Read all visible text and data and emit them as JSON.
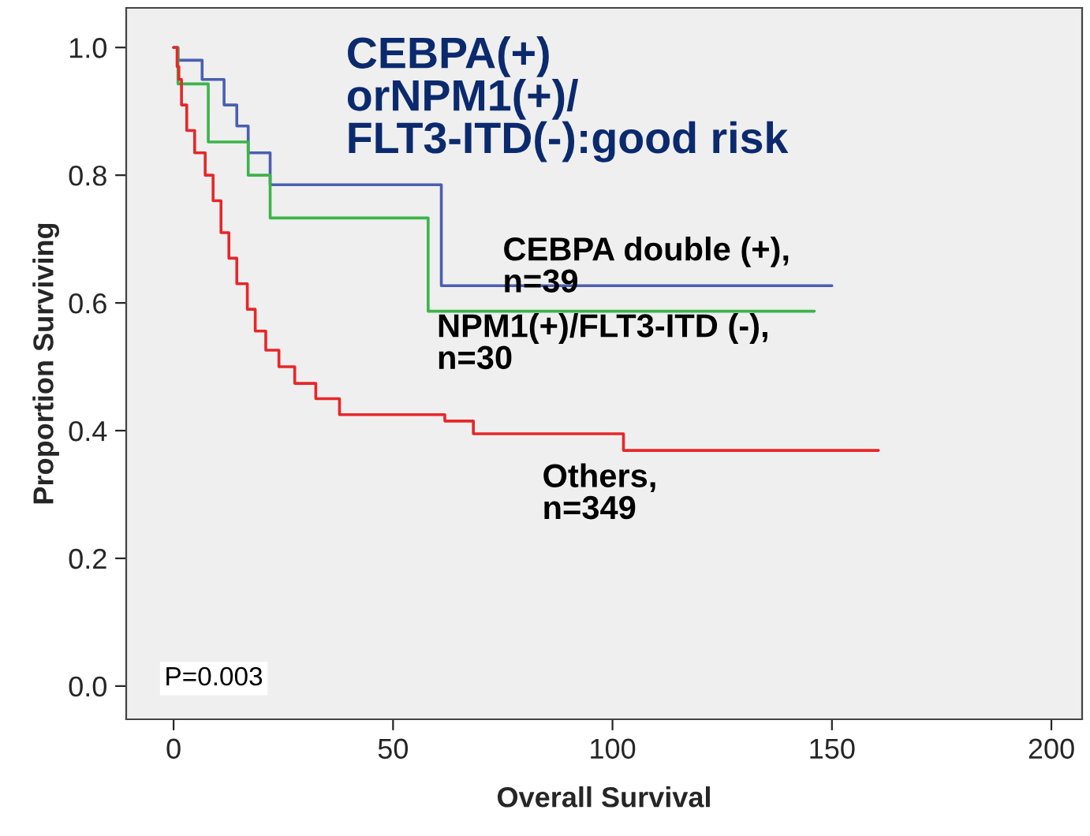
{
  "chart_data": {
    "type": "step",
    "xlabel": "Overall Survival",
    "ylabel": "Proportion Surviving",
    "series": [
      {
        "name": "CEBPA double (+),\nn=39",
        "color": "#4a5fb0",
        "x": [
          0,
          1,
          6.5,
          11.5,
          14.4,
          17,
          22,
          61,
          150
        ],
        "values": [
          1.0,
          0.98,
          0.95,
          0.91,
          0.877,
          0.835,
          0.785,
          0.627,
          0.627
        ]
      },
      {
        "name": "NPM1(+)/FLT3-ITD (-),\nn=30",
        "color": "#3cb44a",
        "x": [
          0,
          1,
          7.9,
          17,
          22,
          58,
          146
        ],
        "values": [
          1.0,
          0.943,
          0.852,
          0.8,
          0.733,
          0.587,
          0.587
        ]
      },
      {
        "name": "Others,\nn=349",
        "color": "#e8262a",
        "x": [
          0,
          0.8,
          1.2,
          1.8,
          3.0,
          4.8,
          7.2,
          9.0,
          10.8,
          12.6,
          14.4,
          16.8,
          18.6,
          21,
          24,
          27.6,
          32.4,
          37.8,
          61.8,
          68.3,
          102.5,
          160.6
        ],
        "values": [
          1.0,
          0.97,
          0.95,
          0.91,
          0.87,
          0.835,
          0.8,
          0.76,
          0.71,
          0.67,
          0.63,
          0.59,
          0.556,
          0.526,
          0.5,
          0.474,
          0.45,
          0.425,
          0.415,
          0.395,
          0.369,
          0.369
        ]
      }
    ],
    "annotations": [
      "CEBPA(+)\norNPM1(+)/\nFLT3-ITD(-):good risk",
      "P=0.003"
    ],
    "xlim": [
      -10.8,
      207
    ],
    "ylim": [
      -0.052,
      1.062
    ],
    "xticks": [
      0,
      50,
      100,
      150,
      200
    ],
    "yticks": [
      {
        "value": 0,
        "label": "0.0"
      },
      {
        "value": 0.2,
        "label": "0.2"
      },
      {
        "value": 0.4,
        "label": "0.4"
      },
      {
        "value": 0.6,
        "label": "0.6"
      },
      {
        "value": 0.8,
        "label": "0.8"
      },
      {
        "value": 1.0,
        "label": "1.0"
      }
    ],
    "grid": false,
    "legend": false
  }
}
